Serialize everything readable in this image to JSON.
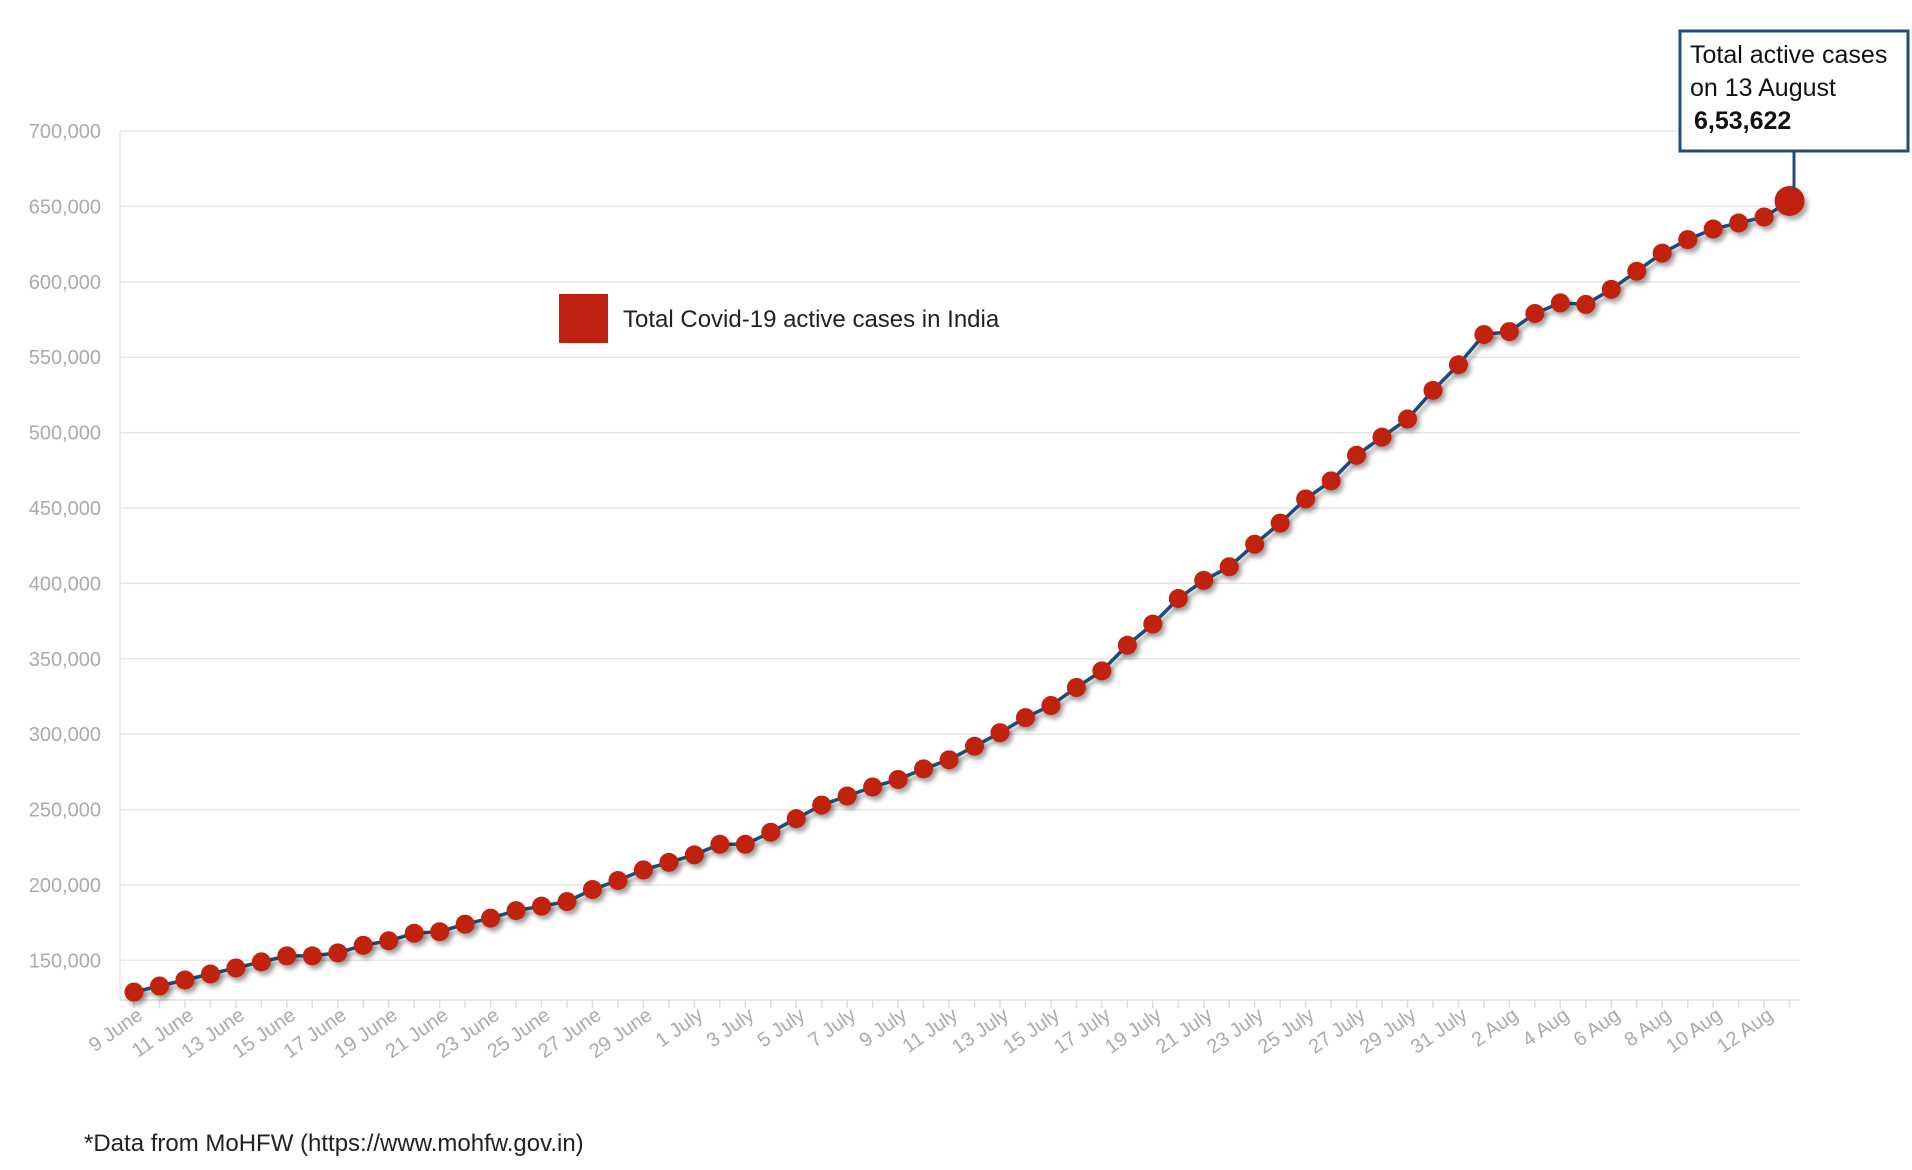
{
  "colors": {
    "line": "#1f4e79",
    "marker": "#c0200f",
    "grid": "#e6e6e6",
    "axis_text": "#aaaaaa",
    "callout_border": "#1f4e79"
  },
  "chart_data": {
    "type": "line",
    "title": "",
    "xlabel": "",
    "ylabel": "",
    "ylim": [
      120000,
      700000
    ],
    "y_ticks": [
      "150,000",
      "200,000",
      "250,000",
      "300,000",
      "350,000",
      "400,000",
      "450,000",
      "500,000",
      "550,000",
      "600,000",
      "650,000",
      "700,000"
    ],
    "y_tick_values": [
      150000,
      200000,
      250000,
      300000,
      350000,
      400000,
      450000,
      500000,
      550000,
      600000,
      650000,
      700000
    ],
    "grid": true,
    "legend": {
      "placement": "top-left",
      "entries": [
        "Total Covid-19 active cases in India"
      ]
    },
    "x_tick_labels": [
      "9 June",
      "11 June",
      "13 June",
      "15 June",
      "17 June",
      "19 June",
      "21 June",
      "23 June",
      "25 June",
      "27 June",
      "29 June",
      "1 July",
      "3 July",
      "5 July",
      "7 July",
      "9 July",
      "11 July",
      "13 July",
      "15 July",
      "17 July",
      "19 July",
      "21 July",
      "23 July",
      "25 July",
      "27 July",
      "29 July",
      "31 July",
      "2 Aug",
      "4 Aug",
      "6 Aug",
      "8 Aug",
      "10 Aug",
      "12 Aug"
    ],
    "series": [
      {
        "name": "Total Covid-19 active cases in India",
        "values": [
          129000,
          133000,
          137000,
          141000,
          145000,
          149000,
          153000,
          153000,
          155000,
          160000,
          163000,
          168000,
          169000,
          174000,
          178000,
          183000,
          186000,
          189000,
          197000,
          203000,
          210000,
          215000,
          220000,
          227000,
          227000,
          235000,
          244000,
          253000,
          259000,
          265000,
          270000,
          277000,
          283000,
          292000,
          301000,
          311000,
          319000,
          331000,
          342000,
          359000,
          373000,
          390000,
          402000,
          411000,
          426000,
          440000,
          456000,
          468000,
          485000,
          497000,
          509000,
          528000,
          545000,
          565000,
          567000,
          579000,
          586000,
          585000,
          595000,
          607000,
          619000,
          628000,
          635000,
          639000,
          643000,
          653622
        ]
      }
    ],
    "annotation": {
      "line1": "Total active cases",
      "line2": "on 13 August",
      "value": "6,53,622"
    }
  },
  "source_note": "*Data from MoHFW (https://www.mohfw.gov.in)"
}
